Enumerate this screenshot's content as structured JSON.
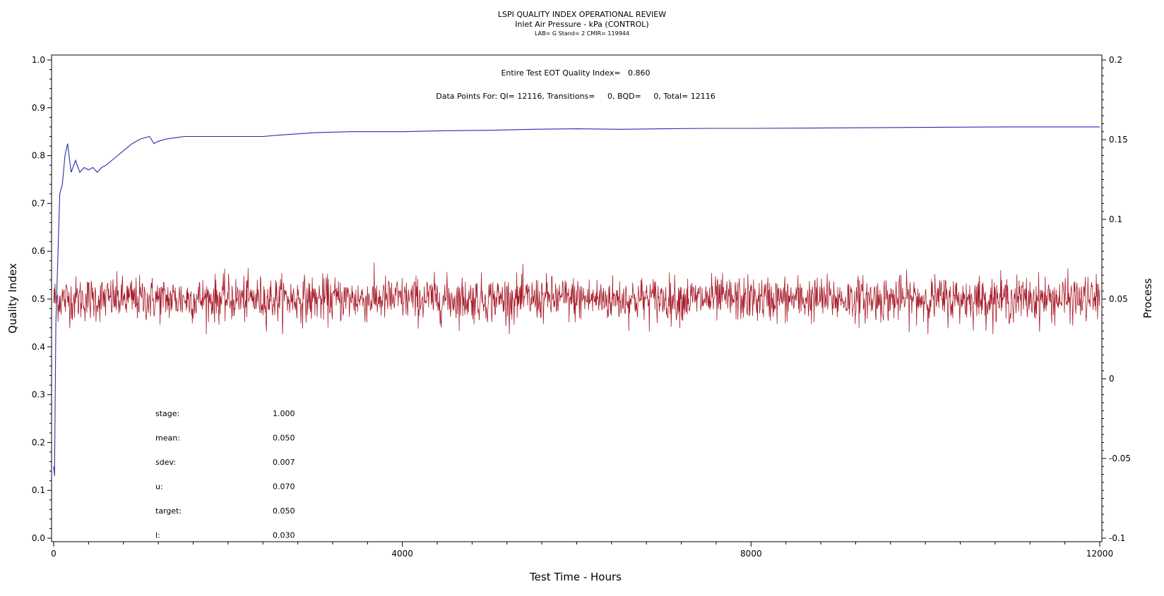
{
  "header": {
    "title": "LSPI QUALITY INDEX OPERATIONAL REVIEW",
    "subtitle": "Inlet Air Pressure - kPa (CONTROL)",
    "info": "LAB= G Stand= 2 CMIR= 119944"
  },
  "annotations": {
    "quality_index": "Entire Test EOT Quality Index=   0.860",
    "data_points": "Data Points For: QI= 12116, Transitions=     0, BQD=     0, Total= 12116"
  },
  "stats": [
    {
      "label": "stage:",
      "value": "1.000"
    },
    {
      "label": "mean:",
      "value": "0.050"
    },
    {
      "label": "sdev:",
      "value": "0.007"
    },
    {
      "label": "u:",
      "value": "0.070"
    },
    {
      "label": "target:",
      "value": "0.050"
    },
    {
      "label": "l:",
      "value": "0.030"
    }
  ],
  "chart_data": {
    "type": "line",
    "xlabel": "Test Time - Hours",
    "ylabel": "Quality Index",
    "y2label": "Process",
    "xlim": [
      0,
      12000
    ],
    "ylim": [
      0.0,
      1.0
    ],
    "y2lim": [
      -0.1,
      0.2
    ],
    "x_ticks": [
      "0",
      "4000",
      "8000",
      "12000"
    ],
    "y_ticks": [
      "0.0",
      "0.1",
      "0.2",
      "0.3",
      "0.4",
      "0.5",
      "0.6",
      "0.7",
      "0.8",
      "0.9",
      "1.0"
    ],
    "y2_ticks": [
      "-0.1",
      "-0.05",
      "0",
      "0.05",
      "0.1",
      "0.15",
      "0.2"
    ],
    "grid": false,
    "series": [
      {
        "axis": "left",
        "color": "#2b2bb0",
        "x": [
          0,
          10,
          25,
          50,
          70,
          100,
          130,
          160,
          200,
          250,
          300,
          350,
          400,
          450,
          500,
          550,
          600,
          700,
          800,
          900,
          1000,
          1100,
          1150,
          1200,
          1300,
          1500,
          1800,
          2000,
          2200,
          2400,
          2600,
          3000,
          3400,
          4000,
          4500,
          5000,
          5500,
          6000,
          6500,
          7000,
          7500,
          8000,
          9000,
          10000,
          11000,
          12000
        ],
        "values": [
          0.15,
          0.13,
          0.45,
          0.6,
          0.72,
          0.74,
          0.8,
          0.825,
          0.765,
          0.79,
          0.765,
          0.775,
          0.77,
          0.775,
          0.765,
          0.775,
          0.78,
          0.795,
          0.81,
          0.825,
          0.835,
          0.84,
          0.825,
          0.83,
          0.835,
          0.84,
          0.84,
          0.84,
          0.84,
          0.84,
          0.843,
          0.848,
          0.85,
          0.85,
          0.852,
          0.853,
          0.855,
          0.856,
          0.855,
          0.856,
          0.857,
          0.857,
          0.858,
          0.859,
          0.86,
          0.86
        ]
      },
      {
        "axis": "right",
        "color": "#a81c2a",
        "n": 12116,
        "mean": 0.05,
        "sdev": 0.007,
        "min": 0.028,
        "max": 0.074
      }
    ]
  }
}
